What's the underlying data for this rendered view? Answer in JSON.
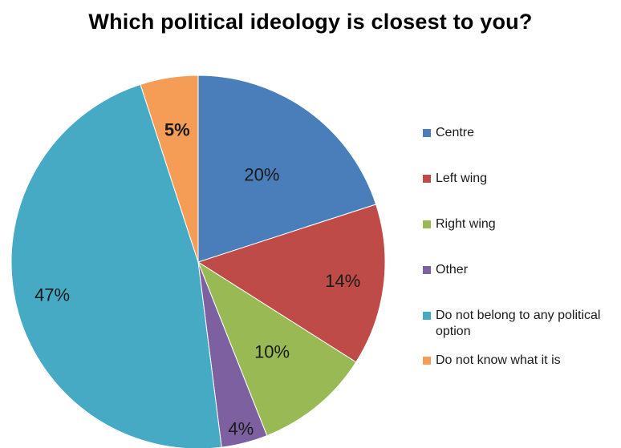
{
  "chart_data": {
    "type": "pie",
    "title": "Which political ideology is closest to you?",
    "legend_position": "right",
    "slices": [
      {
        "label": "Centre",
        "value": 20,
        "display": "20%",
        "color": "#4a7ebb"
      },
      {
        "label": "Left wing",
        "value": 14,
        "display": "14%",
        "color": "#be4b48"
      },
      {
        "label": "Right wing",
        "value": 10,
        "display": "10%",
        "color": "#98b954"
      },
      {
        "label": "Other",
        "value": 4,
        "display": "4%",
        "color": "#7d60a0"
      },
      {
        "label": "Do not belong to any political option",
        "value": 47,
        "display": "47%",
        "color": "#46aac5"
      },
      {
        "label": "Do not know what it is",
        "value": 5,
        "display": "5%",
        "color": "#f59d56"
      }
    ]
  }
}
